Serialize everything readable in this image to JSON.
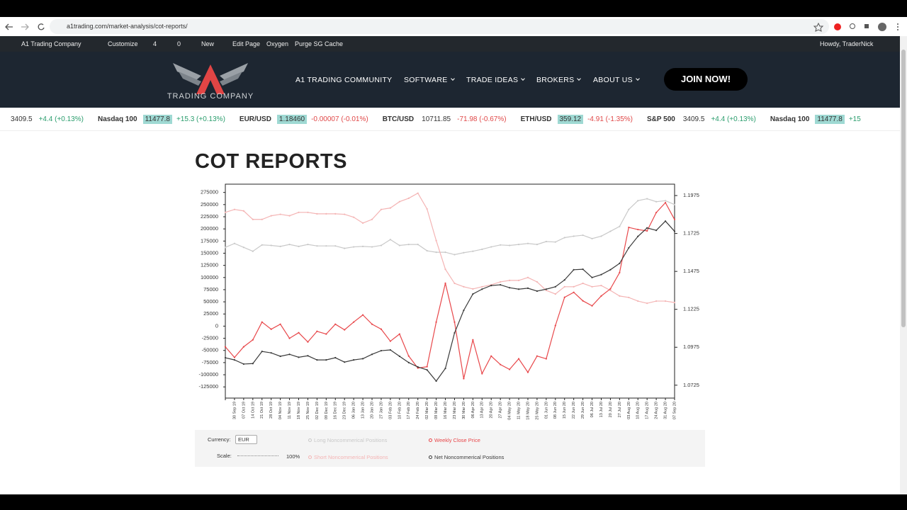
{
  "browser": {
    "url": "a1trading.com/market-analysis/cot-reports/"
  },
  "admin_bar": {
    "items": [
      "A1 Trading Company",
      "Customize",
      "4",
      "0",
      "New",
      "Edit Page",
      "Oxygen",
      "Purge SG Cache"
    ],
    "greeting": "Howdy, TraderNick"
  },
  "header": {
    "logo": "TRADING COMPANY",
    "nav": [
      "A1 TRADING COMMUNITY",
      "SOFTWARE",
      "TRADE IDEAS",
      "BROKERS",
      "ABOUT US"
    ],
    "cta": "JOIN NOW!"
  },
  "ticker": [
    {
      "name": null,
      "price": "3409.5",
      "change": "+4.4 (+0.13%)",
      "highlight": false
    },
    {
      "name": "Nasdaq 100",
      "price": "11477.8",
      "change": "+15.3 (+0.13%)",
      "highlight": true
    },
    {
      "name": "EUR/USD",
      "price": "1.18460",
      "change": "-0.00007 (-0.01%)",
      "highlight": true
    },
    {
      "name": "BTC/USD",
      "price": "10711.85",
      "change": "-71.98 (-0.67%)",
      "highlight": false
    },
    {
      "name": "ETH/USD",
      "price": "359.12",
      "change": "-4.91 (-1.35%)",
      "highlight": true
    },
    {
      "name": "S&P 500",
      "price": "3409.5",
      "change": "+4.4 (+0.13%)",
      "highlight": false
    },
    {
      "name": "Nasdaq 100",
      "price": "11477.8",
      "change": "+15",
      "highlight": true
    }
  ],
  "page_title": "COT REPORTS",
  "chart_data": {
    "type": "line",
    "categories": [
      null,
      "30 Sep 19",
      "07 Oct 19",
      "14 Oct 19",
      "21 Oct 19",
      "28 Oct 19",
      "04 Nov 19",
      "11 Nov 19",
      "18 Nov 19",
      "25 Nov 19",
      "02 Dec 19",
      "09 Dec 19",
      "16 Dec 19",
      "23 Dec 19",
      "06 Jan 20",
      "13 Jan 20",
      "20 Jan 20",
      "27 Jan 20",
      "03 Feb 20",
      "10 Feb 20",
      "17 Feb 20",
      "24 Feb 20",
      "02 Mar 20",
      "09 Mar 20",
      "16 Mar 20",
      "23 Mar 20",
      "30 Mar 20",
      "06 Apr 20",
      "13 Apr 20",
      "20 Apr 20",
      "27 Apr 20",
      "04 May 20",
      "11 May 20",
      "18 May 20",
      "25 May 20",
      "01 Jun 20",
      "08 Jun 20",
      "15 Jun 20",
      "22 Jun 20",
      "29 Jun 20",
      "06 Jul 20",
      "13 Jul 20",
      "20 Jul 20",
      "27 Jul 20",
      "03 Aug 20",
      "10 Aug 20",
      "17 Aug 20",
      "24 Aug 20",
      "31 Aug 20",
      "07 Sep 20"
    ],
    "series": [
      {
        "name": "Long Noncommerical Positions",
        "color": "#c9c9c9",
        "values": [
          162000,
          170000,
          162000,
          154000,
          167000,
          166000,
          164000,
          168000,
          164000,
          168000,
          165000,
          165000,
          165000,
          160000,
          163000,
          164000,
          163000,
          166000,
          178000,
          166000,
          168000,
          168000,
          155000,
          152000,
          152000,
          147000,
          151000,
          154000,
          158000,
          163000,
          167000,
          166000,
          168000,
          170000,
          168000,
          174000,
          173000,
          182000,
          185000,
          187000,
          180000,
          185000,
          195000,
          205000,
          240000,
          258000,
          262000,
          256000,
          258000,
          250000
        ]
      },
      {
        "name": "Short Noncommerical Positions",
        "color": "#f4b4b4",
        "values": [
          234000,
          240000,
          237000,
          219500,
          219500,
          227000,
          230000,
          227000,
          234000,
          234000,
          231000,
          231000,
          231000,
          230000,
          224000,
          212000,
          219500,
          240000,
          243000,
          256000,
          263000,
          273500,
          241000,
          176000,
          117000,
          88000,
          81000,
          76500,
          81000,
          85000,
          91000,
          94000,
          94000,
          100000,
          91000,
          73500,
          66000,
          81000,
          81000,
          88000,
          81000,
          83500,
          73500,
          62000,
          59000,
          51500,
          47000,
          51500,
          51500,
          48500
        ]
      },
      {
        "name": "Weekly Close Price",
        "color": "#e8474a",
        "axis": "y2",
        "values": [
          1.0978,
          1.0908,
          1.0978,
          1.1024,
          1.1141,
          1.1094,
          1.1127,
          1.1034,
          1.1071,
          1.101,
          1.108,
          1.1062,
          1.1127,
          1.109,
          1.1141,
          1.1188,
          1.1127,
          1.1094,
          1.1015,
          1.1062,
          1.0917,
          1.0838,
          1.0847,
          1.1141,
          1.1397,
          1.1141,
          1.0768,
          1.1024,
          1.0801,
          1.0917,
          1.0861,
          1.0829,
          1.0899,
          1.081,
          1.0917,
          1.0899,
          1.1118,
          1.1304,
          1.1337,
          1.1281,
          1.1248,
          1.1313,
          1.136,
          1.1467,
          1.1765,
          1.1751,
          1.1742,
          1.1863,
          1.1928,
          1.1817
        ]
      },
      {
        "name": "Net Noncommerical Positions",
        "color": "#3a3a3a",
        "values": [
          -65000,
          -69500,
          -78000,
          -77000,
          -52000,
          -55000,
          -62000,
          -58000,
          -64000,
          -61000,
          -69500,
          -69500,
          -65000,
          -74000,
          -69500,
          -67000,
          -58000,
          -50500,
          -49000,
          -62000,
          -75000,
          -84000,
          -90000,
          -113000,
          -87000,
          -14000,
          32500,
          66000,
          76000,
          83500,
          85000,
          79000,
          76000,
          78000,
          72000,
          76000,
          81000,
          95000,
          116000,
          117000,
          100000,
          106000,
          116000,
          129000,
          161000,
          184500,
          202000,
          197000,
          216000,
          195000
        ]
      }
    ],
    "ylim": [
      -148000,
      292000
    ],
    "yticks": [
      275000,
      250000,
      225000,
      200000,
      175000,
      150000,
      125000,
      100000,
      75000,
      50000,
      25000,
      0,
      -25000,
      -50000,
      -75000,
      -100000,
      -125000
    ],
    "y2lim": [
      1.064,
      1.205
    ],
    "y2ticks": [
      1.1975,
      1.1725,
      1.1475,
      1.1225,
      1.0975,
      1.0725
    ],
    "grid": false
  },
  "controls": {
    "currency_label": "Currency:",
    "currency": "EUR",
    "scale_label": "Scale:",
    "scale": "100%"
  }
}
